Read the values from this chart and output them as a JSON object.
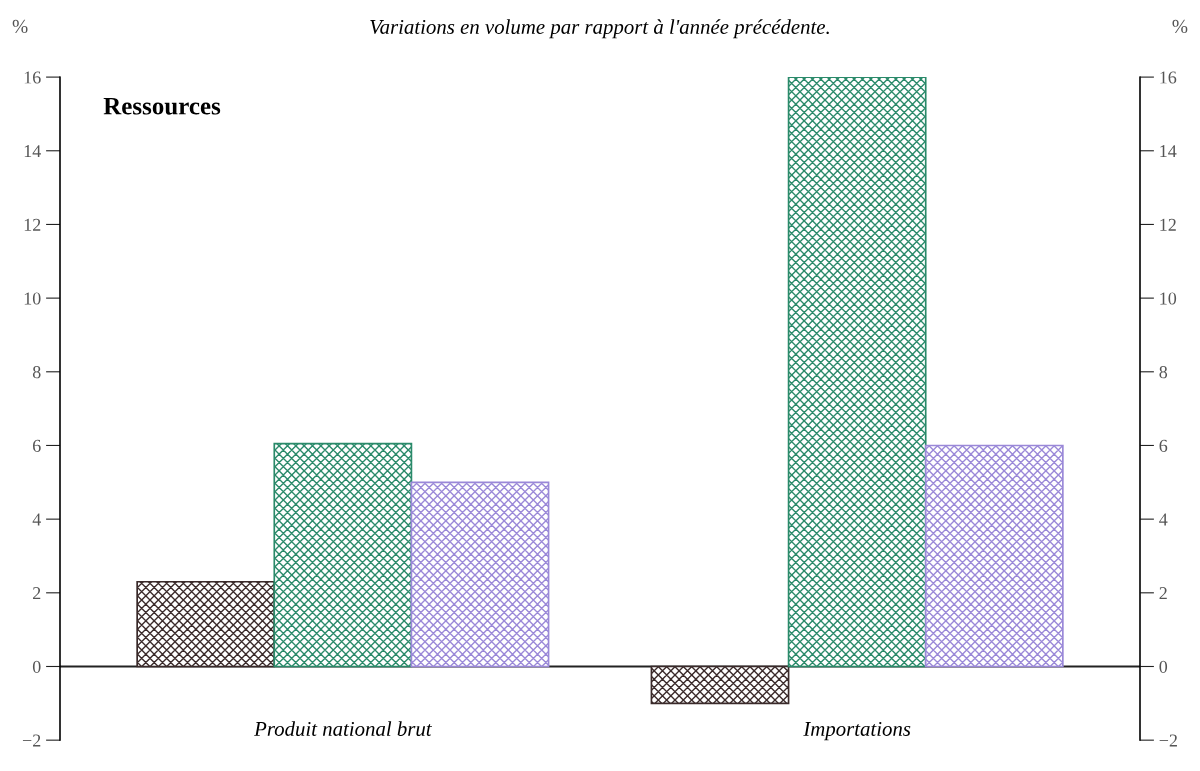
{
  "chart_data": {
    "type": "bar",
    "title": "Variations en volume par rapport à l'année précédente.",
    "ylabel": "%",
    "y2label": "%",
    "categories": [
      "Produit national brut",
      "Importations"
    ],
    "series": [
      {
        "color": "#3a2a2a",
        "values": [
          2.3,
          -1.0
        ]
      },
      {
        "color": "#2a8a6a",
        "values": [
          6.05,
          16.0
        ]
      },
      {
        "color": "#9a88d8",
        "values": [
          5.0,
          6.0
        ]
      }
    ],
    "ylim": [
      -2,
      16
    ],
    "yticks": [
      {
        "value": -2,
        "label": "−2"
      },
      0,
      2,
      4,
      6,
      8,
      10,
      12,
      14,
      16
    ],
    "y2lim": [
      -2,
      16
    ],
    "y2ticks": [
      {
        "value": -2,
        "label": "−2"
      },
      0,
      2,
      4,
      6,
      8,
      10,
      12,
      14,
      16
    ],
    "ref_lines": [
      {
        "axis": "y",
        "value": 0,
        "label": null,
        "color": "#222222"
      }
    ],
    "annotations": [
      "Ressources"
    ],
    "grid": false,
    "legend": false
  }
}
